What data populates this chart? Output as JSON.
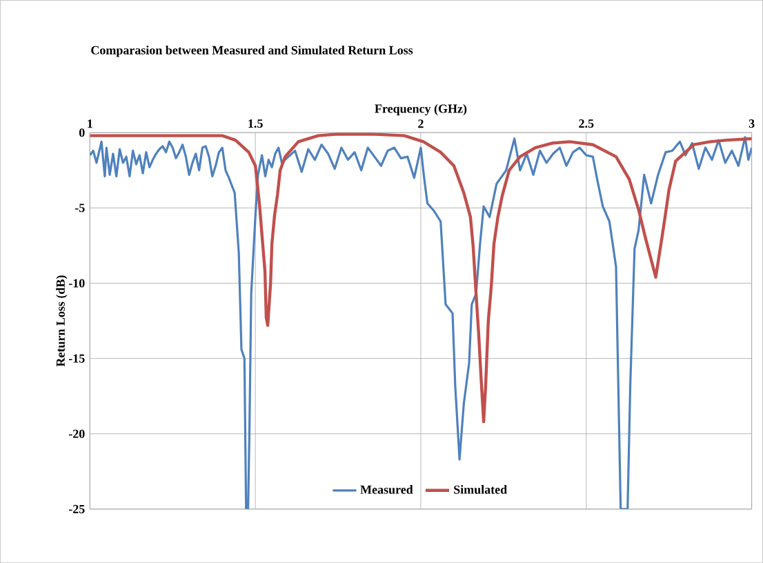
{
  "chart_data": {
    "type": "line",
    "title": "Comparasion between Measured and Simulated Return Loss",
    "xlabel": "Frequency (GHz)",
    "ylabel": "Return Loss (dB)",
    "xlim": [
      1,
      3
    ],
    "xticks": [
      1,
      1.5,
      2,
      2.5,
      3
    ],
    "ylim": [
      -25,
      0
    ],
    "yticks": [
      0,
      -5,
      -10,
      -15,
      -20,
      -25
    ],
    "grid": true,
    "legend": "bottom",
    "line_style": "solid",
    "series": [
      {
        "name": "Measured",
        "color": "#4f81bd",
        "marker": "none",
        "x": [
          1.0,
          1.01,
          1.02,
          1.035,
          1.045,
          1.05,
          1.06,
          1.07,
          1.08,
          1.09,
          1.1,
          1.11,
          1.12,
          1.13,
          1.14,
          1.15,
          1.16,
          1.17,
          1.18,
          1.19,
          1.2,
          1.21,
          1.22,
          1.23,
          1.24,
          1.25,
          1.26,
          1.27,
          1.28,
          1.29,
          1.3,
          1.31,
          1.32,
          1.33,
          1.34,
          1.35,
          1.36,
          1.37,
          1.38,
          1.39,
          1.4,
          1.41,
          1.42,
          1.4375,
          1.45,
          1.458,
          1.467,
          1.472,
          1.478,
          1.482,
          1.4875,
          1.5,
          1.508,
          1.52,
          1.53,
          1.54,
          1.55,
          1.56,
          1.57,
          1.58,
          1.6,
          1.62,
          1.64,
          1.66,
          1.68,
          1.7,
          1.72,
          1.74,
          1.76,
          1.78,
          1.8,
          1.82,
          1.84,
          1.86,
          1.88,
          1.9,
          1.92,
          1.94,
          1.96,
          1.98,
          2.0,
          2.01,
          2.02,
          2.04,
          2.06,
          2.075,
          2.096,
          2.104,
          2.117,
          2.13,
          2.146,
          2.154,
          2.167,
          2.179,
          2.19,
          2.208,
          2.229,
          2.258,
          2.283,
          2.3,
          2.32,
          2.34,
          2.36,
          2.38,
          2.4,
          2.42,
          2.44,
          2.46,
          2.48,
          2.5,
          2.52,
          2.533,
          2.55,
          2.57,
          2.59,
          2.604,
          2.625,
          2.633,
          2.646,
          2.658,
          2.675,
          2.696,
          2.717,
          2.74,
          2.76,
          2.783,
          2.8,
          2.82,
          2.84,
          2.86,
          2.88,
          2.9,
          2.92,
          2.94,
          2.96,
          2.98,
          2.99,
          3.0
        ],
        "values": [
          -1.5,
          -1.2,
          -2.0,
          -0.6,
          -2.9,
          -1.0,
          -2.8,
          -1.4,
          -2.9,
          -1.1,
          -2.0,
          -1.6,
          -2.9,
          -1.2,
          -2.1,
          -1.5,
          -2.7,
          -1.3,
          -2.3,
          -1.8,
          -1.4,
          -1.1,
          -0.9,
          -1.3,
          -0.6,
          -1.0,
          -1.7,
          -1.3,
          -0.8,
          -1.6,
          -2.8,
          -2.0,
          -1.4,
          -2.5,
          -1.0,
          -0.9,
          -1.6,
          -2.9,
          -2.2,
          -1.3,
          -1.0,
          -2.5,
          -3.0,
          -4.0,
          -8.0,
          -14.4,
          -15.0,
          -25,
          -25,
          -20.0,
          -10.7,
          -5.6,
          -2.8,
          -1.5,
          -2.9,
          -1.8,
          -2.3,
          -1.4,
          -1.0,
          -2.0,
          -1.6,
          -1.2,
          -2.6,
          -1.1,
          -1.8,
          -0.8,
          -1.4,
          -2.4,
          -1.0,
          -1.8,
          -1.3,
          -2.5,
          -1.0,
          -1.6,
          -2.2,
          -1.2,
          -1.0,
          -1.7,
          -1.6,
          -3.0,
          -1.0,
          -3.0,
          -4.7,
          -5.2,
          -5.9,
          -11.4,
          -12.0,
          -16.8,
          -21.7,
          -18.0,
          -15.3,
          -11.4,
          -10.7,
          -7.4,
          -4.9,
          -5.6,
          -3.4,
          -2.5,
          -0.4,
          -2.5,
          -1.4,
          -2.8,
          -1.2,
          -2.0,
          -1.4,
          -1.0,
          -2.2,
          -1.3,
          -1.0,
          -1.5,
          -1.6,
          -3.1,
          -4.9,
          -5.9,
          -8.9,
          -25,
          -25,
          -16.8,
          -7.7,
          -6.5,
          -2.8,
          -4.7,
          -2.8,
          -1.3,
          -1.2,
          -0.6,
          -1.5,
          -0.7,
          -2.4,
          -1.0,
          -1.8,
          -0.5,
          -2.0,
          -1.2,
          -2.2,
          -0.3,
          -1.8,
          -1.0
        ]
      },
      {
        "name": "Simulated",
        "color": "#c0504d",
        "marker": "none",
        "x": [
          1.0,
          1.1,
          1.2,
          1.3,
          1.4,
          1.44,
          1.48,
          1.5,
          1.508,
          1.513,
          1.52,
          1.529,
          1.533,
          1.5375,
          1.546,
          1.55,
          1.558,
          1.567,
          1.575,
          1.59,
          1.63,
          1.69,
          1.75,
          1.85,
          1.95,
          2.008,
          2.06,
          2.1,
          2.13,
          2.15,
          2.158,
          2.167,
          2.175,
          2.183,
          2.19,
          2.196,
          2.204,
          2.213,
          2.221,
          2.233,
          2.246,
          2.267,
          2.3,
          2.346,
          2.396,
          2.45,
          2.52,
          2.59,
          2.63,
          2.658,
          2.679,
          2.71,
          2.73,
          2.7375,
          2.75,
          2.77,
          2.825,
          2.875,
          2.925,
          3.0
        ],
        "values": [
          -0.2,
          -0.2,
          -0.2,
          -0.2,
          -0.2,
          -0.5,
          -1.3,
          -2.2,
          -3.8,
          -4.9,
          -6.8,
          -9.2,
          -12.3,
          -12.8,
          -10.0,
          -7.4,
          -5.5,
          -4.1,
          -2.5,
          -1.6,
          -0.6,
          -0.2,
          -0.1,
          -0.1,
          -0.2,
          -0.6,
          -1.3,
          -2.2,
          -4.0,
          -5.6,
          -7.5,
          -10.7,
          -13.4,
          -16.6,
          -19.2,
          -16.8,
          -12.5,
          -10.2,
          -7.4,
          -5.6,
          -4.2,
          -2.5,
          -1.6,
          -1.0,
          -0.7,
          -0.6,
          -0.8,
          -1.6,
          -3.1,
          -5.1,
          -7.0,
          -9.6,
          -6.8,
          -5.7,
          -3.8,
          -1.9,
          -0.8,
          -0.6,
          -0.5,
          -0.4
        ]
      }
    ]
  }
}
